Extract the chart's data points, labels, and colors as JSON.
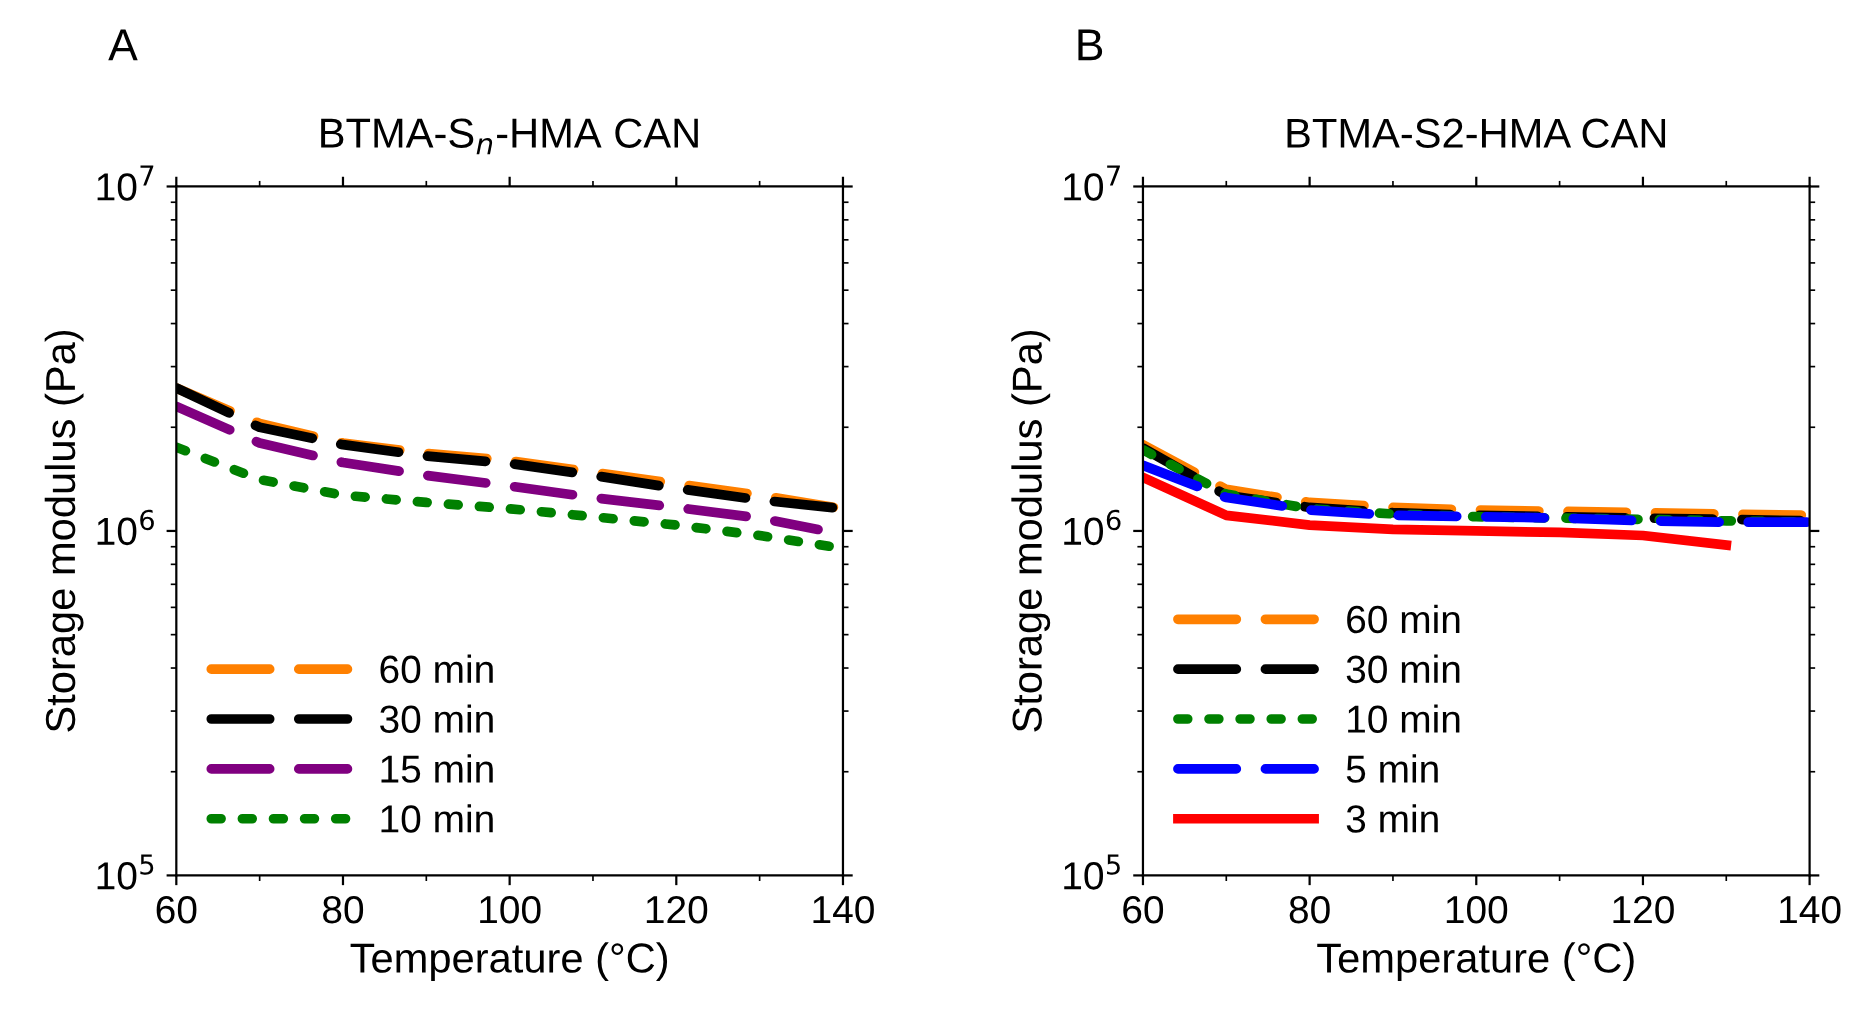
{
  "chart_data": [
    {
      "type": "line",
      "title": "BTMA-S$_{n}$-HMA CAN",
      "annotations": [
        "A"
      ],
      "xlabel": "Temperature (°C)",
      "ylabel": "Storage modulus (Pa)",
      "log": "y",
      "xlim": [
        60,
        140
      ],
      "xticks": [
        60,
        80,
        100,
        120,
        140
      ],
      "ylim": [
        100000,
        10000000
      ],
      "yticks": [
        {
          "value": 100000,
          "label": "10$^{5}$"
        },
        {
          "value": 1000000,
          "label": "10$^{6}$"
        },
        {
          "value": 10000000,
          "label": "10$^{7}$"
        }
      ],
      "legend": "bottom left",
      "grid": false,
      "marker": "none",
      "series": [
        {
          "name": "60 min",
          "color": "#ff8000",
          "line_style": "dashed",
          "x": [
            60,
            70,
            80,
            90,
            100,
            110,
            120,
            130,
            140
          ],
          "values": [
            2600000,
            2050000,
            1800000,
            1680000,
            1600000,
            1480000,
            1370000,
            1270000,
            1160000
          ]
        },
        {
          "name": "30 min",
          "color": "#000000",
          "line_style": "dashed",
          "x": [
            60,
            70,
            80,
            90,
            100,
            110,
            120,
            130,
            140
          ],
          "values": [
            2600000,
            2000000,
            1780000,
            1650000,
            1570000,
            1450000,
            1330000,
            1230000,
            1160000
          ]
        },
        {
          "name": "15 min",
          "color": "#800080",
          "line_style": "dashed",
          "x": [
            60,
            70,
            80,
            90,
            100,
            110,
            120,
            130,
            137
          ],
          "values": [
            2300000,
            1800000,
            1580000,
            1450000,
            1350000,
            1250000,
            1170000,
            1090000,
            1010000
          ]
        },
        {
          "name": "10 min",
          "color": "#008000",
          "line_style": "dotted",
          "x": [
            60,
            70,
            80,
            90,
            100,
            110,
            120,
            130,
            140
          ],
          "values": [
            1750000,
            1410000,
            1270000,
            1210000,
            1160000,
            1100000,
            1040000,
            970000,
            890000
          ]
        }
      ]
    },
    {
      "type": "line",
      "title": "BTMA-S2-HMA CAN",
      "annotations": [
        "B"
      ],
      "xlabel": "Temperature (°C)",
      "ylabel": "Storage modulus (Pa)",
      "log": "y",
      "xlim": [
        60,
        140
      ],
      "xticks": [
        60,
        80,
        100,
        120,
        140
      ],
      "ylim": [
        100000,
        10000000
      ],
      "yticks": [
        {
          "value": 100000,
          "label": "10$^{5}$"
        },
        {
          "value": 1000000,
          "label": "10$^{6}$"
        },
        {
          "value": 10000000,
          "label": "10$^{7}$"
        }
      ],
      "legend": "bottom left",
      "grid": false,
      "marker": "none",
      "series": [
        {
          "name": "60 min",
          "color": "#ff8000",
          "line_style": "dashed",
          "x": [
            60,
            70,
            80,
            90,
            100,
            110,
            120,
            130,
            140
          ],
          "values": [
            1780000,
            1320000,
            1210000,
            1170000,
            1150000,
            1140000,
            1130000,
            1120000,
            1110000
          ]
        },
        {
          "name": "30 min",
          "color": "#000000",
          "line_style": "dashed",
          "x": [
            60,
            70,
            80,
            90,
            100,
            110,
            120,
            130,
            140
          ],
          "values": [
            1740000,
            1270000,
            1170000,
            1130000,
            1110000,
            1100000,
            1090000,
            1080000,
            1070000
          ]
        },
        {
          "name": "10 min",
          "color": "#008000",
          "line_style": "dotted",
          "x": [
            60,
            70,
            80,
            90,
            100,
            110,
            120,
            130,
            140
          ],
          "values": [
            1720000,
            1280000,
            1160000,
            1120000,
            1100000,
            1090000,
            1080000,
            1070000,
            1060000
          ]
        },
        {
          "name": "5 min",
          "color": "#0000ff",
          "line_style": "dashed",
          "x": [
            60,
            70,
            80,
            90,
            100,
            110,
            120,
            130,
            140
          ],
          "values": [
            1550000,
            1250000,
            1150000,
            1110000,
            1100000,
            1090000,
            1070000,
            1060000,
            1060000
          ]
        },
        {
          "name": "3 min",
          "color": "#ff0000",
          "line_style": "solid",
          "x": [
            60,
            70,
            80,
            90,
            100,
            110,
            120,
            130
          ],
          "values": [
            1430000,
            1110000,
            1040000,
            1010000,
            1000000,
            990000,
            970000,
            910000
          ]
        }
      ]
    }
  ]
}
